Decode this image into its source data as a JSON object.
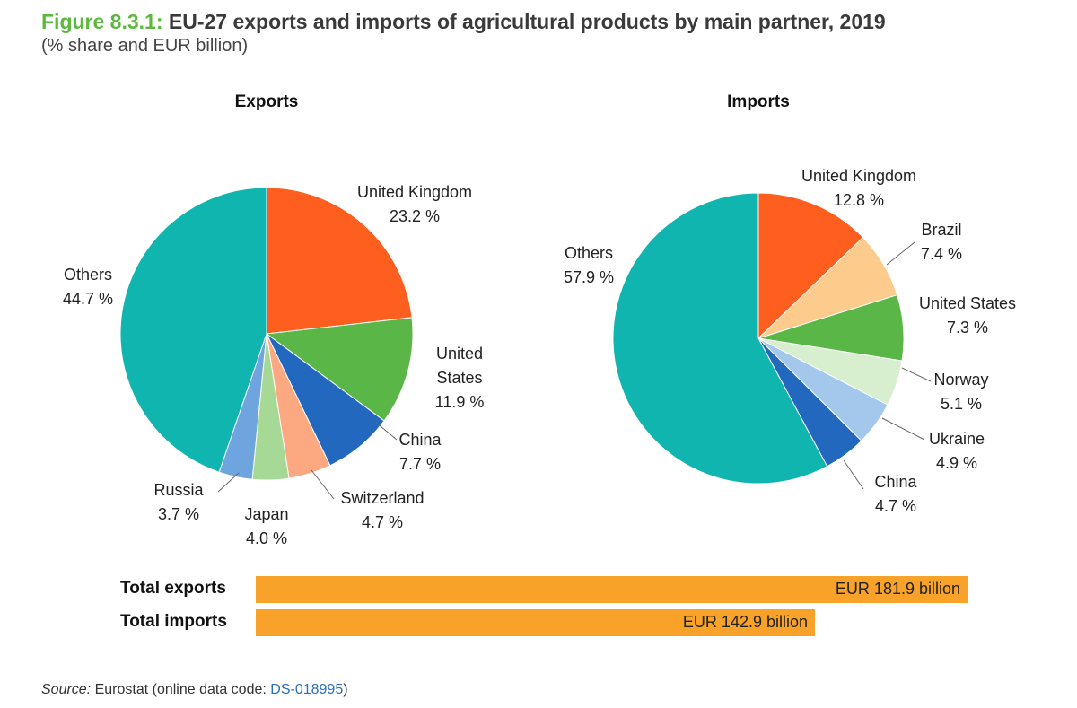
{
  "title": {
    "figure_number": "Figure 8.3.1:",
    "text": "EU-27 exports and imports of agricultural products by main partner, 2019",
    "subtitle": "(% share and EUR billion)"
  },
  "colors": {
    "teal": "#10b5b0",
    "orange_red": "#fe5e1e",
    "green": "#5ab646",
    "blue": "#2168be",
    "salmon": "#fca981",
    "light_green": "#a6d896",
    "light_blue": "#6ea5df",
    "peach": "#fdcc8c",
    "mint": "#d7efcf",
    "sky": "#a4c8eb",
    "bar": "#f9a22a"
  },
  "chart_data": [
    {
      "type": "pie",
      "title": "Exports",
      "slices": [
        {
          "label": "United Kingdom",
          "label_lines": [
            "United Kingdom"
          ],
          "value": 23.2,
          "value_text": "23.2 %",
          "color": "#fe5e1e"
        },
        {
          "label": "United States",
          "label_lines": [
            "United",
            "States"
          ],
          "value": 11.9,
          "value_text": "11.9 %",
          "color": "#5ab646"
        },
        {
          "label": "China",
          "label_lines": [
            "China"
          ],
          "value": 7.7,
          "value_text": "7.7 %",
          "color": "#2168be"
        },
        {
          "label": "Switzerland",
          "label_lines": [
            "Switzerland"
          ],
          "value": 4.7,
          "value_text": "4.7 %",
          "color": "#fca981"
        },
        {
          "label": "Japan",
          "label_lines": [
            "Japan"
          ],
          "value": 4.0,
          "value_text": "4.0 %",
          "color": "#a6d896"
        },
        {
          "label": "Russia",
          "label_lines": [
            "Russia"
          ],
          "value": 3.7,
          "value_text": "3.7 %",
          "color": "#6ea5df"
        },
        {
          "label": "Others",
          "label_lines": [
            "Others"
          ],
          "value": 44.7,
          "value_text": "44.7 %",
          "color": "#10b5b0"
        }
      ]
    },
    {
      "type": "pie",
      "title": "Imports",
      "slices": [
        {
          "label": "United Kingdom",
          "label_lines": [
            "United Kingdom"
          ],
          "value": 12.8,
          "value_text": "12.8 %",
          "color": "#fe5e1e"
        },
        {
          "label": "Brazil",
          "label_lines": [
            "Brazil"
          ],
          "value": 7.4,
          "value_text": "7.4 %",
          "color": "#fdcc8c"
        },
        {
          "label": "United States",
          "label_lines": [
            "United States"
          ],
          "value": 7.3,
          "value_text": "7.3 %",
          "color": "#5ab646"
        },
        {
          "label": "Norway",
          "label_lines": [
            "Norway"
          ],
          "value": 5.1,
          "value_text": "5.1 %",
          "color": "#d7efcf"
        },
        {
          "label": "Ukraine",
          "label_lines": [
            "Ukraine"
          ],
          "value": 4.9,
          "value_text": "4.9 %",
          "color": "#a4c8eb"
        },
        {
          "label": "China",
          "label_lines": [
            "China"
          ],
          "value": 4.7,
          "value_text": "4.7 %",
          "color": "#2168be"
        },
        {
          "label": "Others",
          "label_lines": [
            "Others"
          ],
          "value": 57.9,
          "value_text": "57.9 %",
          "color": "#10b5b0"
        }
      ]
    },
    {
      "type": "bar",
      "orientation": "horizontal",
      "categories": [
        "Total exports",
        "Total imports"
      ],
      "values": [
        181.9,
        142.9
      ],
      "value_texts": [
        "EUR 181.9 billion",
        "EUR 142.9 billion"
      ],
      "unit": "EUR billion",
      "color": "#f9a22a"
    }
  ],
  "source": {
    "label": "Source:",
    "text": " Eurostat (online data code: ",
    "code": "DS-018995",
    "close": ")"
  }
}
